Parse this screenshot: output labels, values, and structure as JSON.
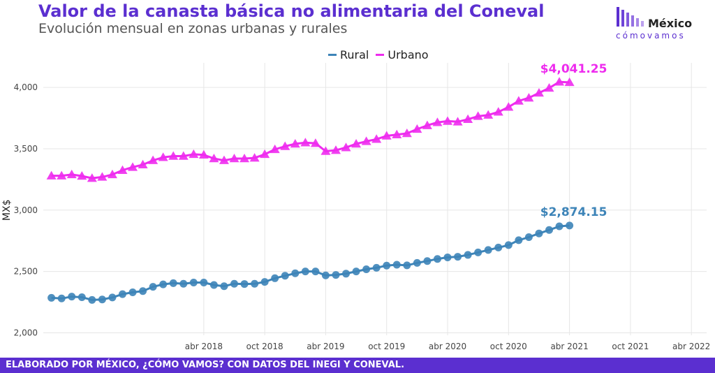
{
  "header": {
    "title": "Valor de la canasta básica no alimentaria del Coneval",
    "subtitle": "Evolución mensual en zonas urbanas y rurales"
  },
  "logo": {
    "word": "México",
    "sub": "cómovamos"
  },
  "footer": {
    "text": "ELABORADO POR MÉXICO, ¿CÓMO VAMOS? CON DATOS DEL INEGI Y CONEVAL."
  },
  "colors": {
    "rural": "#3d84b8",
    "urbano": "#ee2bee",
    "brand": "#5b2fd0"
  },
  "chart_data": {
    "type": "line",
    "title": "Valor de la canasta básica no alimentaria del Coneval",
    "subtitle": "Evolución mensual en zonas urbanas y rurales",
    "xlabel": "",
    "ylabel": "MX$",
    "ylim": [
      1980,
      4200
    ],
    "yticks": [
      2000,
      2500,
      3000,
      3500,
      4000
    ],
    "ytick_labels": [
      "2,000",
      "2,500",
      "3,000",
      "3,500",
      "4,000"
    ],
    "xticks": [
      "2018-04",
      "2018-10",
      "2019-04",
      "2019-10",
      "2020-04",
      "2020-10",
      "2021-04",
      "2021-10",
      "2022-04"
    ],
    "xtick_labels": [
      "abr 2018",
      "oct 2018",
      "abr 2019",
      "oct 2019",
      "abr 2020",
      "oct 2020",
      "abr 2021",
      "oct 2021",
      "abr 2022"
    ],
    "grid": true,
    "legend": "top-center",
    "x": [
      "2017-01",
      "2017-02",
      "2017-03",
      "2017-04",
      "2017-05",
      "2017-06",
      "2017-07",
      "2017-08",
      "2017-09",
      "2017-10",
      "2017-11",
      "2017-12",
      "2018-01",
      "2018-02",
      "2018-03",
      "2018-04",
      "2018-05",
      "2018-06",
      "2018-07",
      "2018-08",
      "2018-09",
      "2018-10",
      "2018-11",
      "2018-12",
      "2019-01",
      "2019-02",
      "2019-03",
      "2019-04",
      "2019-05",
      "2019-06",
      "2019-07",
      "2019-08",
      "2019-09",
      "2019-10",
      "2019-11",
      "2019-12",
      "2020-01",
      "2020-02",
      "2020-03",
      "2020-04",
      "2020-05",
      "2020-06",
      "2020-07",
      "2020-08",
      "2020-09",
      "2020-10",
      "2020-11",
      "2020-12",
      "2021-01",
      "2021-02",
      "2021-03",
      "2021-04"
    ],
    "series": [
      {
        "name": "Rural",
        "values": [
          2285,
          2280,
          2295,
          2290,
          2268,
          2272,
          2288,
          2315,
          2330,
          2340,
          2375,
          2395,
          2405,
          2400,
          2410,
          2410,
          2390,
          2380,
          2400,
          2398,
          2400,
          2415,
          2445,
          2465,
          2485,
          2500,
          2500,
          2468,
          2472,
          2482,
          2500,
          2518,
          2530,
          2548,
          2555,
          2550,
          2570,
          2585,
          2602,
          2615,
          2620,
          2635,
          2655,
          2675,
          2695,
          2715,
          2755,
          2780,
          2810,
          2838,
          2868,
          2874.15
        ],
        "end_label": "$2,874.15"
      },
      {
        "name": "Urbano",
        "values": [
          3280,
          3280,
          3290,
          3278,
          3260,
          3270,
          3290,
          3325,
          3350,
          3370,
          3405,
          3430,
          3440,
          3440,
          3455,
          3450,
          3420,
          3405,
          3420,
          3420,
          3425,
          3455,
          3495,
          3520,
          3540,
          3550,
          3545,
          3480,
          3488,
          3510,
          3540,
          3560,
          3578,
          3605,
          3615,
          3625,
          3660,
          3690,
          3715,
          3725,
          3720,
          3740,
          3765,
          3775,
          3800,
          3840,
          3890,
          3915,
          3955,
          3995,
          4045,
          4041.25
        ],
        "end_label": "$4,041.25"
      }
    ]
  }
}
